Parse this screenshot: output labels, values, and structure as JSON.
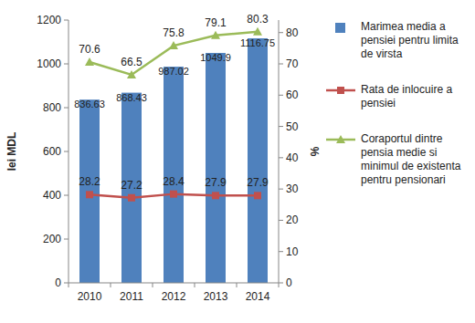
{
  "chart_data": {
    "type": "bar",
    "categories": [
      "2010",
      "2011",
      "2012",
      "2013",
      "2014"
    ],
    "series": [
      {
        "name": "Marimea media a pensiei pentru limita de virsta",
        "type": "bar",
        "color": "#4f81bd",
        "values": [
          836.63,
          868.43,
          987.02,
          1049.9,
          1116.75
        ]
      },
      {
        "name": "Rata de inlocuire a pensiei",
        "type": "line",
        "color": "#c0504d",
        "marker": "square",
        "axis": "y2",
        "values": [
          28.2,
          27.2,
          28.4,
          27.9,
          27.9
        ]
      },
      {
        "name": "Coraportul dintre pensia medie si minimul de existenta pentru pensionari",
        "type": "line",
        "color": "#9bbb59",
        "marker": "triangle",
        "axis": "y2",
        "values": [
          70.6,
          66.5,
          75.8,
          79.1,
          80.3
        ]
      }
    ],
    "y_label": "lei MDL",
    "y2_label": "%",
    "ylim": [
      0,
      1200
    ],
    "yticks": [
      0,
      200,
      400,
      600,
      800,
      1000,
      1200
    ],
    "y2lim": [
      0,
      84
    ],
    "y2ticks": [
      0,
      10,
      20,
      30,
      40,
      50,
      60,
      70,
      80
    ],
    "data_labels": true,
    "grid": false,
    "legend": "right"
  }
}
